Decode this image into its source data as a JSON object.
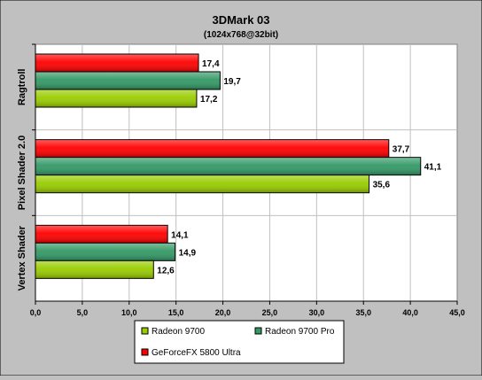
{
  "chart_data": {
    "type": "bar",
    "orientation": "horizontal",
    "title": "3DMark 03",
    "subtitle": "(1024x768@32bit)",
    "categories": [
      "Ragtroll",
      "Pixel Shader 2.0",
      "Vertex Shader"
    ],
    "series": [
      {
        "name": "GeForceFX 5800 Ultra",
        "color": "#ff0000",
        "values": [
          17.4,
          37.7,
          14.1
        ],
        "labels": [
          "17,4",
          "37,7",
          "14,1"
        ]
      },
      {
        "name": "Radeon 9700 Pro",
        "color": "#339966",
        "values": [
          19.7,
          41.1,
          14.9
        ],
        "labels": [
          "19,7",
          "41,1",
          "14,9"
        ]
      },
      {
        "name": "Radeon 9700",
        "color": "#99cc00",
        "values": [
          17.2,
          35.6,
          12.6
        ],
        "labels": [
          "17,2",
          "35,6",
          "12,6"
        ]
      }
    ],
    "xlim": [
      0,
      45
    ],
    "xticks": [
      "0,0",
      "5,0",
      "10,0",
      "15,0",
      "20,0",
      "25,0",
      "30,0",
      "35,0",
      "40,0",
      "45,0"
    ],
    "grid": true,
    "legend_position": "bottom",
    "legend_order": [
      "Radeon 9700",
      "Radeon 9700 Pro",
      "GeForceFX 5800 Ultra"
    ]
  }
}
